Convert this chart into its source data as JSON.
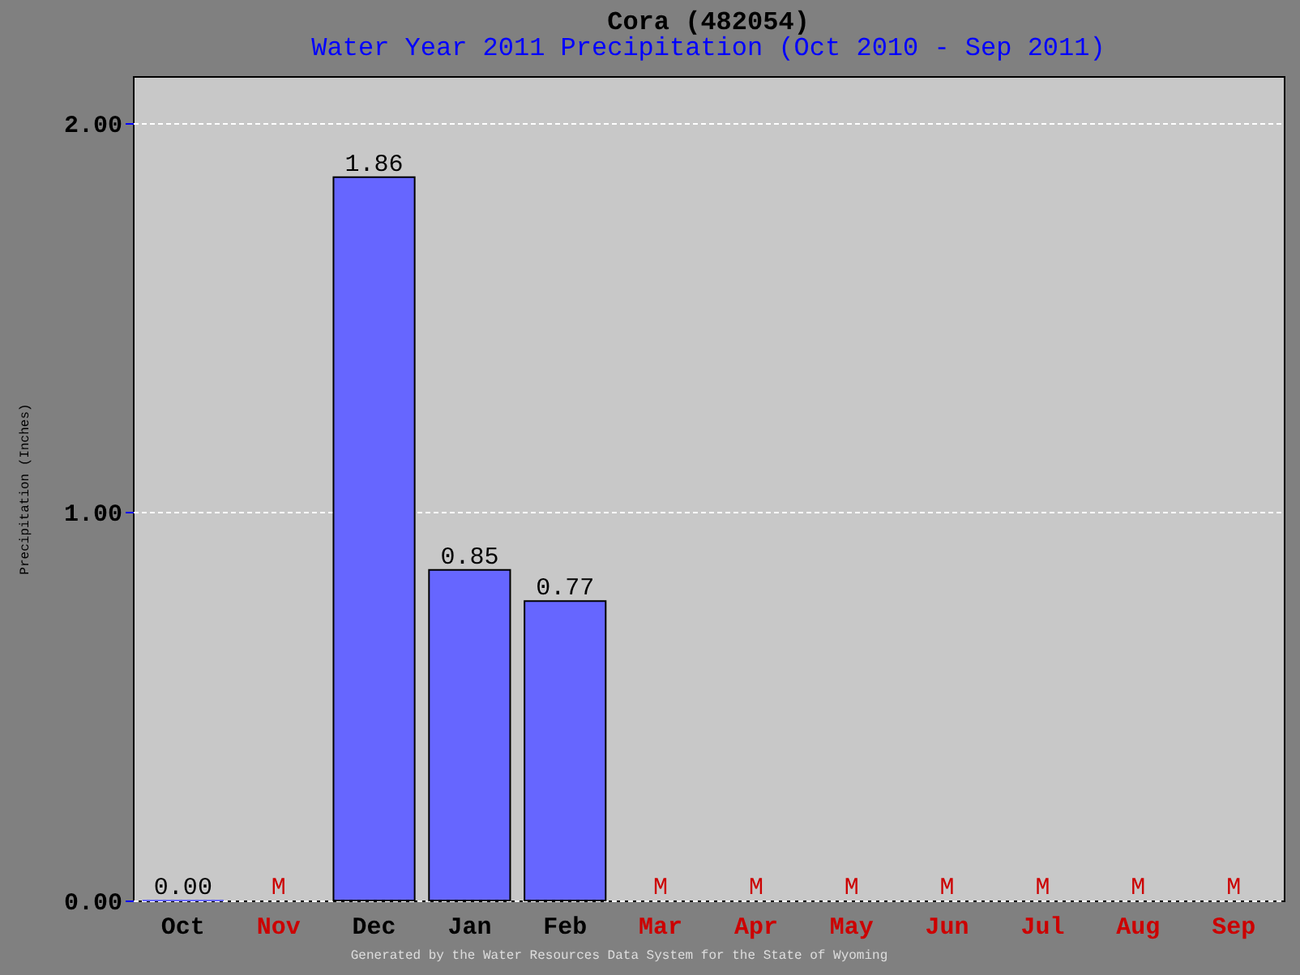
{
  "chart_data": {
    "type": "bar",
    "title": "Cora (482054)",
    "subtitle": "Water Year 2011 Precipitation (Oct 2010 - Sep 2011)",
    "ylabel": "Precipitation (Inches)",
    "categories": [
      "Oct",
      "Nov",
      "Dec",
      "Jan",
      "Feb",
      "Mar",
      "Apr",
      "May",
      "Jun",
      "Jul",
      "Aug",
      "Sep"
    ],
    "values": [
      0.0,
      null,
      1.86,
      0.85,
      0.77,
      null,
      null,
      null,
      null,
      null,
      null,
      null
    ],
    "value_labels": [
      "0.00",
      "M",
      "1.86",
      "0.85",
      "0.77",
      "M",
      "M",
      "M",
      "M",
      "M",
      "M",
      "M"
    ],
    "color": "#6666ff",
    "ylim": [
      0,
      2.12
    ],
    "yticks": [
      {
        "value": 0,
        "label": "0.00"
      },
      {
        "value": 1,
        "label": "1.00"
      },
      {
        "value": 2,
        "label": "2.00"
      }
    ],
    "grid": "y",
    "annotations": [
      "Generated by the Water Resources Data System for the State of Wyoming"
    ]
  }
}
